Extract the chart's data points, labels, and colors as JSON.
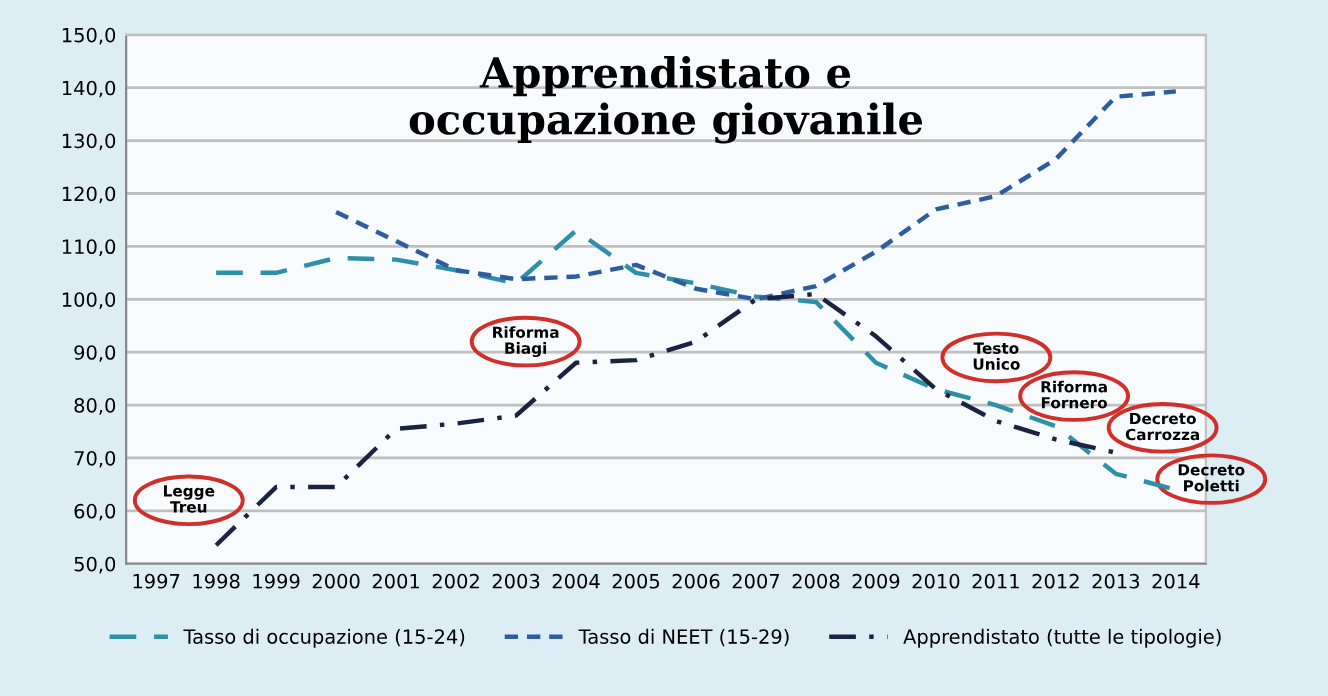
{
  "chart_data": {
    "type": "line",
    "title": "Apprendistato e\noccupazione giovanile",
    "categories": [
      "1997",
      "1998",
      "1999",
      "2000",
      "2001",
      "2002",
      "2003",
      "2004",
      "2005",
      "2006",
      "2007",
      "2008",
      "2009",
      "2010",
      "2011",
      "2012",
      "2013",
      "2014"
    ],
    "series": [
      {
        "name": "Tasso di occupazione (15-24)",
        "color": "#2e8fa8",
        "line_style": "dashed",
        "values": [
          null,
          105,
          105,
          107.8,
          107.5,
          105.5,
          103,
          113,
          105,
          103,
          100.5,
          99.5,
          88,
          83,
          80,
          76,
          67,
          64
        ]
      },
      {
        "name": "Tasso di NEET (15-29)",
        "color": "#2e5d9f",
        "line_style": "dotted",
        "values": [
          null,
          null,
          null,
          116.5,
          111,
          105.5,
          103.8,
          104.3,
          106.5,
          102,
          100,
          102.5,
          109,
          117,
          119.5,
          126.5,
          138.3,
          139.3
        ]
      },
      {
        "name": "Apprendistato (tutte le tipologie)",
        "color": "#1a2340",
        "line_style": "dashdot",
        "values": [
          null,
          53.5,
          64.5,
          64.5,
          75.5,
          76.5,
          78,
          88,
          88.5,
          92,
          100,
          101,
          93,
          83,
          77,
          73.5,
          71,
          null
        ]
      }
    ],
    "ylim": [
      50,
      150
    ],
    "yticks": [
      {
        "value": 50,
        "label": "50,0"
      },
      {
        "value": 60,
        "label": "60,0"
      },
      {
        "value": 70,
        "label": "70,0"
      },
      {
        "value": 80,
        "label": "80,0"
      },
      {
        "value": 90,
        "label": "90,0"
      },
      {
        "value": 100,
        "label": "100,0"
      },
      {
        "value": 110,
        "label": "110,0"
      },
      {
        "value": 120,
        "label": "120,0"
      },
      {
        "value": 130,
        "label": "130,0"
      },
      {
        "value": 140,
        "label": "140,0"
      },
      {
        "value": 150,
        "label": "150,0"
      }
    ],
    "grid": "y",
    "legend": "bottom",
    "marker": "none",
    "annotations": [
      "Legge\nTreu",
      "Riforma\nBiagi",
      "Testo\nUnico",
      "Riforma\nFornero",
      "Decreto\nCarrozza",
      "Decreto\nPoletti"
    ]
  }
}
